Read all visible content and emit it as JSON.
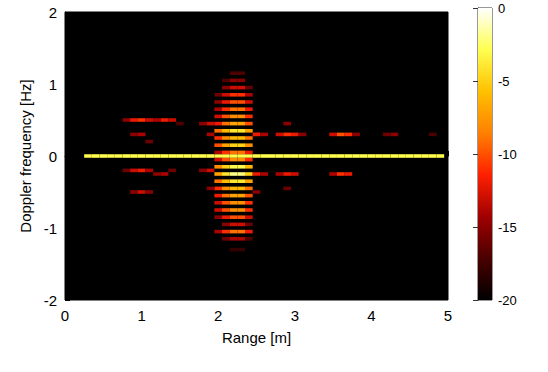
{
  "chart_data": {
    "type": "heatmap",
    "xlabel": "Range [m]",
    "ylabel": "Doppler frequency [Hz]",
    "xlim": [
      0,
      5
    ],
    "xticks": [
      0,
      1,
      2,
      3,
      4,
      5
    ],
    "ylim": [
      -2,
      2
    ],
    "yticks": [
      -2,
      -1,
      0,
      1,
      2
    ],
    "colorbar": {
      "range": [
        -20,
        0
      ],
      "ticks": [
        0,
        -5,
        -10,
        -15,
        -20
      ]
    },
    "cells": [
      [
        0.3,
        0,
        -3
      ],
      [
        0.4,
        0,
        -3
      ],
      [
        0.5,
        0,
        -3
      ],
      [
        0.6,
        0,
        -3
      ],
      [
        0.7,
        0,
        -3
      ],
      [
        0.8,
        0,
        -3
      ],
      [
        0.9,
        0,
        -3
      ],
      [
        1.0,
        0,
        -3
      ],
      [
        1.1,
        0,
        -3
      ],
      [
        1.2,
        0,
        -3
      ],
      [
        1.3,
        0,
        -3
      ],
      [
        1.4,
        0,
        -3
      ],
      [
        1.5,
        0,
        -3
      ],
      [
        1.6,
        0,
        -3
      ],
      [
        1.7,
        0,
        -3
      ],
      [
        1.8,
        0,
        -3
      ],
      [
        1.9,
        0,
        -3
      ],
      [
        2.0,
        0,
        -3
      ],
      [
        2.1,
        0,
        -3
      ],
      [
        2.2,
        0,
        -3
      ],
      [
        2.3,
        0,
        -3
      ],
      [
        2.4,
        0,
        -3
      ],
      [
        2.5,
        0,
        -3
      ],
      [
        2.6,
        0,
        -3
      ],
      [
        2.7,
        0,
        -3
      ],
      [
        2.8,
        0,
        -3
      ],
      [
        2.9,
        0,
        -3
      ],
      [
        3.0,
        0,
        -3
      ],
      [
        3.1,
        0,
        -3
      ],
      [
        3.2,
        0,
        -3
      ],
      [
        3.3,
        0,
        -3
      ],
      [
        3.4,
        0,
        -3
      ],
      [
        3.5,
        0,
        -3
      ],
      [
        3.6,
        0,
        -3
      ],
      [
        3.7,
        0,
        -3
      ],
      [
        3.8,
        0,
        -3
      ],
      [
        3.9,
        0,
        -3
      ],
      [
        4.0,
        0,
        -3
      ],
      [
        4.1,
        0,
        -3
      ],
      [
        4.2,
        0,
        -3
      ],
      [
        4.3,
        0,
        -3
      ],
      [
        4.4,
        0,
        -3
      ],
      [
        4.5,
        0,
        -3
      ],
      [
        4.6,
        0,
        -3
      ],
      [
        4.7,
        0,
        -3
      ],
      [
        4.8,
        0,
        -3
      ],
      [
        4.9,
        0,
        -3
      ],
      [
        2.2,
        1.15,
        -17
      ],
      [
        2.3,
        1.15,
        -17
      ],
      [
        2.1,
        1.05,
        -17
      ],
      [
        2.2,
        1.05,
        -15
      ],
      [
        2.3,
        1.05,
        -15
      ],
      [
        2.1,
        0.95,
        -15
      ],
      [
        2.2,
        0.95,
        -13
      ],
      [
        2.3,
        0.95,
        -13
      ],
      [
        2.4,
        0.95,
        -16
      ],
      [
        2.0,
        0.85,
        -16
      ],
      [
        2.1,
        0.85,
        -13
      ],
      [
        2.2,
        0.85,
        -11
      ],
      [
        2.3,
        0.85,
        -11
      ],
      [
        2.4,
        0.85,
        -14
      ],
      [
        2.0,
        0.75,
        -15
      ],
      [
        2.1,
        0.75,
        -12
      ],
      [
        2.2,
        0.75,
        -10
      ],
      [
        2.3,
        0.75,
        -10
      ],
      [
        2.4,
        0.75,
        -13
      ],
      [
        2.0,
        0.65,
        -14
      ],
      [
        2.1,
        0.65,
        -11
      ],
      [
        2.2,
        0.65,
        -9
      ],
      [
        2.3,
        0.65,
        -9
      ],
      [
        2.4,
        0.65,
        -12
      ],
      [
        2.0,
        0.55,
        -13
      ],
      [
        2.1,
        0.55,
        -10
      ],
      [
        2.2,
        0.55,
        -8
      ],
      [
        2.3,
        0.55,
        -8
      ],
      [
        2.4,
        0.55,
        -11
      ],
      [
        2.0,
        0.45,
        -12
      ],
      [
        2.1,
        0.45,
        -9
      ],
      [
        2.2,
        0.45,
        -7
      ],
      [
        2.3,
        0.45,
        -7
      ],
      [
        2.4,
        0.45,
        -10
      ],
      [
        2.0,
        0.35,
        -9
      ],
      [
        2.1,
        0.35,
        -6
      ],
      [
        2.2,
        0.35,
        -4
      ],
      [
        2.3,
        0.35,
        -4
      ],
      [
        2.4,
        0.35,
        -7
      ],
      [
        2.0,
        0.25,
        -11
      ],
      [
        2.1,
        0.25,
        -8
      ],
      [
        2.2,
        0.25,
        -6
      ],
      [
        2.3,
        0.25,
        -6
      ],
      [
        2.4,
        0.25,
        -9
      ],
      [
        2.0,
        0.15,
        -10
      ],
      [
        2.1,
        0.15,
        -7
      ],
      [
        2.2,
        0.15,
        -5
      ],
      [
        2.3,
        0.15,
        -5
      ],
      [
        2.4,
        0.15,
        -8
      ],
      [
        2.0,
        0.05,
        -14
      ],
      [
        2.1,
        0.05,
        -11
      ],
      [
        2.2,
        0.05,
        -9
      ],
      [
        2.3,
        0.05,
        -9
      ],
      [
        2.4,
        0.05,
        -12
      ],
      [
        2.0,
        -0.05,
        -13
      ],
      [
        2.1,
        -0.05,
        -10
      ],
      [
        2.2,
        -0.05,
        -8
      ],
      [
        2.3,
        -0.05,
        -8
      ],
      [
        2.4,
        -0.05,
        -11
      ],
      [
        2.0,
        -0.15,
        -8
      ],
      [
        2.1,
        -0.15,
        -5
      ],
      [
        2.2,
        -0.15,
        -3
      ],
      [
        2.3,
        -0.15,
        -3
      ],
      [
        2.4,
        -0.15,
        -6
      ],
      [
        2.0,
        -0.25,
        -7
      ],
      [
        2.1,
        -0.25,
        -4
      ],
      [
        2.2,
        -0.25,
        -2
      ],
      [
        2.3,
        -0.25,
        -2
      ],
      [
        2.4,
        -0.25,
        -5
      ],
      [
        2.0,
        -0.35,
        -9
      ],
      [
        2.1,
        -0.35,
        -6
      ],
      [
        2.2,
        -0.35,
        -4
      ],
      [
        2.3,
        -0.35,
        -4
      ],
      [
        2.4,
        -0.35,
        -7
      ],
      [
        2.0,
        -0.45,
        -11
      ],
      [
        2.1,
        -0.45,
        -8
      ],
      [
        2.2,
        -0.45,
        -6
      ],
      [
        2.3,
        -0.45,
        -6
      ],
      [
        2.4,
        -0.45,
        -9
      ],
      [
        2.0,
        -0.55,
        -12
      ],
      [
        2.1,
        -0.55,
        -9
      ],
      [
        2.2,
        -0.55,
        -7
      ],
      [
        2.3,
        -0.55,
        -7
      ],
      [
        2.4,
        -0.55,
        -10
      ],
      [
        2.0,
        -0.65,
        -13
      ],
      [
        2.1,
        -0.65,
        -10
      ],
      [
        2.2,
        -0.65,
        -8
      ],
      [
        2.3,
        -0.65,
        -8
      ],
      [
        2.4,
        -0.65,
        -11
      ],
      [
        2.0,
        -0.75,
        -13
      ],
      [
        2.1,
        -0.75,
        -10
      ],
      [
        2.2,
        -0.75,
        -8
      ],
      [
        2.3,
        -0.75,
        -8
      ],
      [
        2.4,
        -0.75,
        -11
      ],
      [
        2.0,
        -0.85,
        -15
      ],
      [
        2.1,
        -0.85,
        -12
      ],
      [
        2.2,
        -0.85,
        -10
      ],
      [
        2.3,
        -0.85,
        -10
      ],
      [
        2.4,
        -0.85,
        -13
      ],
      [
        2.1,
        -0.95,
        -15
      ],
      [
        2.2,
        -0.95,
        -13
      ],
      [
        2.3,
        -0.95,
        -13
      ],
      [
        2.4,
        -0.95,
        -16
      ],
      [
        2.0,
        -1.05,
        -14
      ],
      [
        2.1,
        -1.05,
        -11
      ],
      [
        2.2,
        -1.05,
        -9
      ],
      [
        2.3,
        -1.05,
        -9
      ],
      [
        2.4,
        -1.05,
        -12
      ],
      [
        2.1,
        -1.15,
        -16
      ],
      [
        2.2,
        -1.15,
        -14
      ],
      [
        2.3,
        -1.15,
        -14
      ],
      [
        2.4,
        -1.15,
        -17
      ],
      [
        2.2,
        -1.3,
        -18
      ],
      [
        2.3,
        -1.3,
        -18
      ],
      [
        0.8,
        0.5,
        -15
      ],
      [
        0.8,
        -0.2,
        -16
      ],
      [
        0.9,
        0.5,
        -12
      ],
      [
        0.9,
        0.3,
        -15
      ],
      [
        0.9,
        -0.2,
        -13
      ],
      [
        0.9,
        -0.5,
        -15
      ],
      [
        1.0,
        0.5,
        -11
      ],
      [
        1.0,
        0.3,
        -14
      ],
      [
        1.0,
        -0.2,
        -12
      ],
      [
        1.0,
        -0.5,
        -13
      ],
      [
        1.1,
        0.5,
        -13
      ],
      [
        1.1,
        0.2,
        -16
      ],
      [
        1.1,
        -0.2,
        -14
      ],
      [
        1.1,
        -0.5,
        -15
      ],
      [
        1.2,
        0.5,
        -14
      ],
      [
        1.2,
        -0.25,
        -15
      ],
      [
        1.3,
        0.5,
        -12
      ],
      [
        1.3,
        -0.25,
        -14
      ],
      [
        1.4,
        0.5,
        -13
      ],
      [
        1.4,
        -0.2,
        -16
      ],
      [
        1.5,
        0.45,
        -17
      ],
      [
        1.8,
        0.45,
        -15
      ],
      [
        1.8,
        -0.2,
        -15
      ],
      [
        1.9,
        0.45,
        -13
      ],
      [
        1.9,
        0.3,
        -14
      ],
      [
        1.9,
        -0.2,
        -13
      ],
      [
        1.9,
        -0.45,
        -15
      ],
      [
        2.5,
        0.3,
        -12
      ],
      [
        2.5,
        -0.25,
        -12
      ],
      [
        2.5,
        -0.5,
        -15
      ],
      [
        2.6,
        0.3,
        -14
      ],
      [
        2.6,
        -0.25,
        -14
      ],
      [
        2.8,
        0.3,
        -13
      ],
      [
        2.8,
        -0.25,
        -14
      ],
      [
        2.9,
        0.3,
        -11
      ],
      [
        2.9,
        0.45,
        -15
      ],
      [
        2.9,
        -0.25,
        -12
      ],
      [
        2.9,
        -0.45,
        -16
      ],
      [
        3.0,
        0.3,
        -12
      ],
      [
        3.0,
        -0.25,
        -13
      ],
      [
        3.1,
        0.3,
        -15
      ],
      [
        3.5,
        0.3,
        -13
      ],
      [
        3.5,
        -0.25,
        -14
      ],
      [
        3.6,
        0.3,
        -10
      ],
      [
        3.6,
        -0.25,
        -11
      ],
      [
        3.7,
        0.3,
        -11
      ],
      [
        3.7,
        -0.25,
        -12
      ],
      [
        3.8,
        0.3,
        -15
      ],
      [
        4.2,
        0.3,
        -16
      ],
      [
        4.3,
        0.3,
        -15
      ],
      [
        4.8,
        0.3,
        -17
      ]
    ]
  }
}
